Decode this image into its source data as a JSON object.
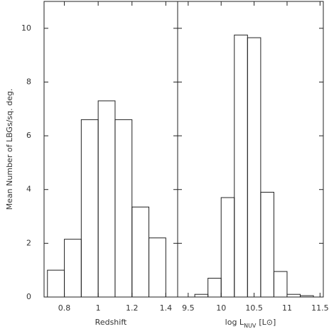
{
  "chart_data": [
    {
      "type": "histogram",
      "ylabel": "Mean Number of LBGs/sq. deg.",
      "xlabel": "Redshift",
      "bins": [
        0.7,
        0.8,
        0.9,
        1.0,
        1.1,
        1.2,
        1.3,
        1.4
      ],
      "values": [
        1.0,
        2.15,
        6.6,
        7.3,
        6.6,
        3.35,
        2.2
      ],
      "color": "#222222",
      "xlim": [
        0.68,
        1.47
      ],
      "xticks": [
        0.8,
        1,
        1.2,
        1.4
      ],
      "ylim": [
        0,
        11
      ],
      "yticks": [
        0,
        2,
        4,
        6,
        8,
        10
      ]
    },
    {
      "type": "histogram",
      "xlabel": "log L",
      "xlabel_sub": "NUV",
      "xlabel_unit": "[L⊙]",
      "bins": [
        9.6,
        9.8,
        10.0,
        10.2,
        10.4,
        10.6,
        10.8,
        11.0,
        11.2,
        11.4
      ],
      "values": [
        0.1,
        0.7,
        3.7,
        9.75,
        9.65,
        3.9,
        0.95,
        0.1,
        0.05
      ],
      "color": "#222222",
      "xlim": [
        9.34,
        11.55
      ],
      "xticks": [
        9.5,
        10,
        10.5,
        11,
        11.5
      ],
      "ylim": [
        0,
        11
      ]
    }
  ]
}
